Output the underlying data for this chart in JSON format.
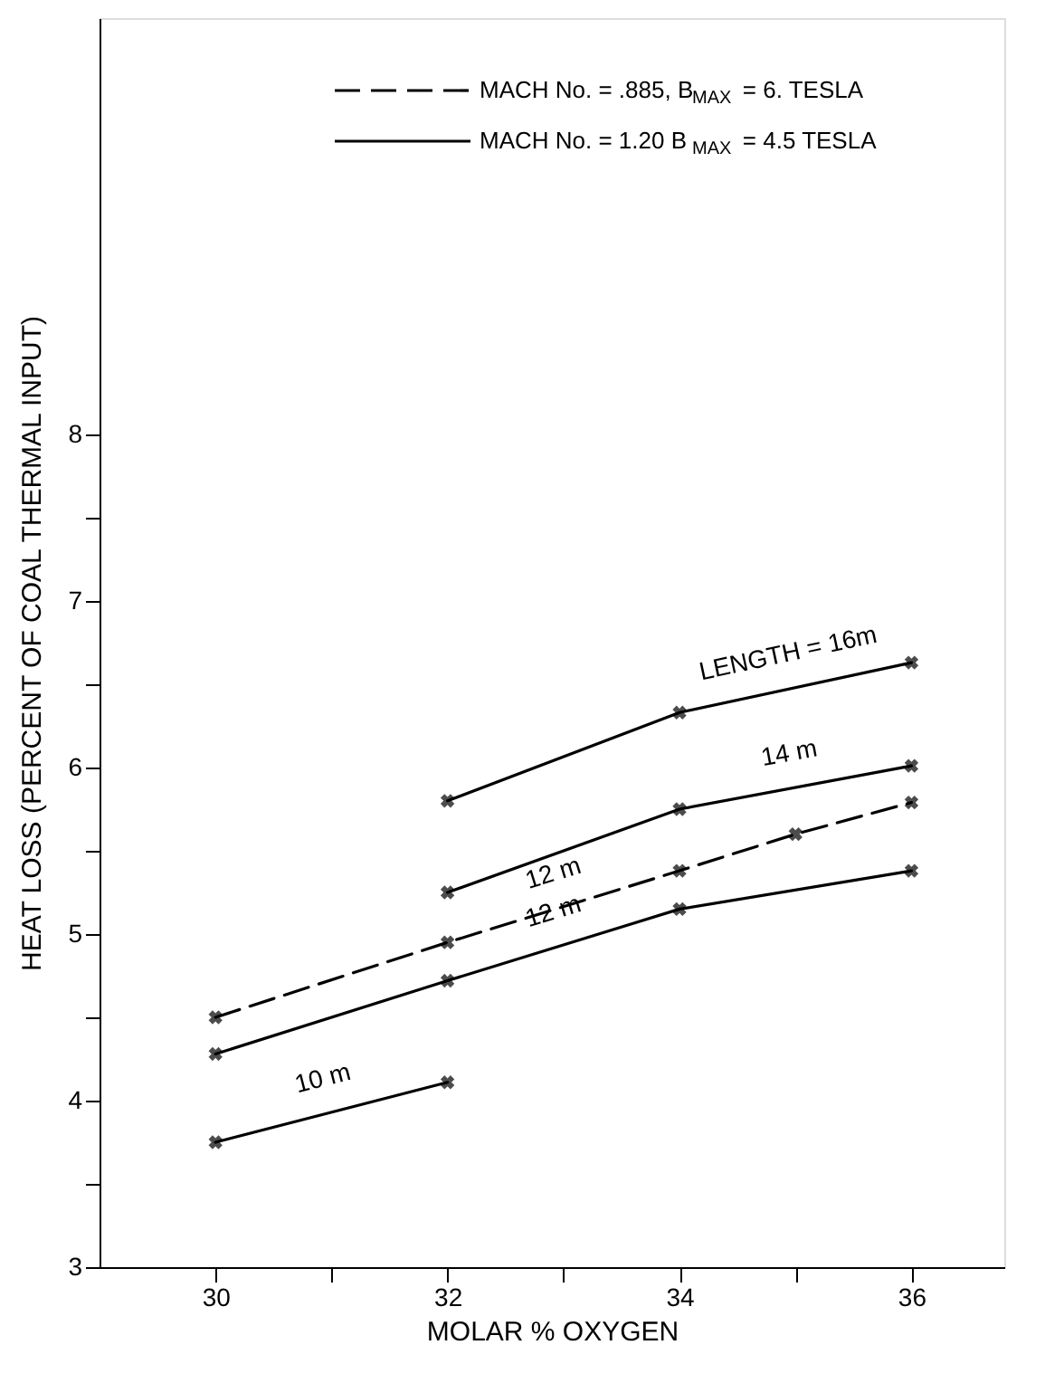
{
  "chart_data": {
    "type": "line",
    "xlabel": "MOLAR % OXYGEN",
    "ylabel": "HEAT LOSS (PERCENT OF COAL THERMAL INPUT)",
    "xlim": [
      29,
      36.8
    ],
    "ylim": [
      3,
      10.5
    ],
    "xticks": [
      30,
      {
        "value": 31,
        "label": null
      },
      32,
      {
        "value": 33,
        "label": null
      },
      34,
      {
        "value": 35,
        "label": null
      },
      36
    ],
    "yticks": [
      3,
      {
        "value": 3.5,
        "label": null
      },
      4,
      {
        "value": 4.5,
        "label": null
      },
      5,
      {
        "value": 5.5,
        "label": null
      },
      6,
      {
        "value": 6.5,
        "label": null
      },
      7,
      {
        "value": 7.5,
        "label": null
      },
      8
    ],
    "grid": false,
    "marker": "cross",
    "series": [
      {
        "name": "LENGTH = 16m",
        "color": "#000000",
        "line_style": "solid",
        "x": [
          32,
          34,
          36
        ],
        "values": [
          5.8,
          6.33,
          6.63
        ]
      },
      {
        "name": "14 m",
        "color": "#000000",
        "line_style": "solid",
        "x": [
          32,
          34,
          36
        ],
        "values": [
          5.25,
          5.75,
          6.01
        ]
      },
      {
        "name": "12 m",
        "color": "#000000",
        "line_style": "dashed",
        "x": [
          30,
          32,
          34,
          35,
          36
        ],
        "values": [
          4.5,
          4.95,
          5.38,
          5.6,
          5.79
        ]
      },
      {
        "name": "12 m",
        "color": "#000000",
        "line_style": "solid",
        "x": [
          30,
          32,
          34,
          36
        ],
        "values": [
          4.28,
          4.72,
          5.15,
          5.38
        ]
      },
      {
        "name": "10 m",
        "color": "#000000",
        "line_style": "solid",
        "x": [
          30,
          32
        ],
        "values": [
          3.75,
          4.11
        ]
      }
    ],
    "annotations": [
      "MACH No. = .885, B$_{MAX}$ = 6. TESLA",
      "MACH No. = 1.20  B$_{MAX}$ = 4.5 TESLA"
    ]
  }
}
